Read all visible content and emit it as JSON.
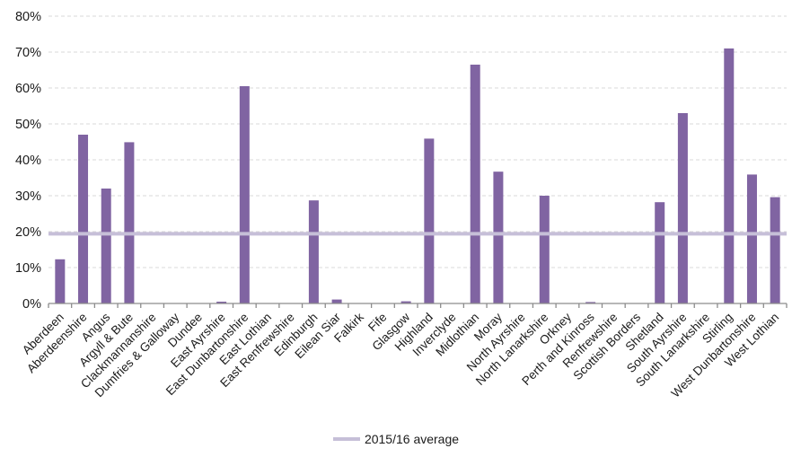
{
  "chart_data": {
    "type": "bar",
    "title": "",
    "xlabel": "",
    "ylabel": "",
    "categories": [
      "Aberdeen",
      "Aberdeenshire",
      "Angus",
      "Argyll & Bute",
      "Clackmannanshire",
      "Dumfries & Galloway",
      "Dundee",
      "East Ayrshire",
      "East Dunbartonshire",
      "East Lothian",
      "East Renfrewshire",
      "Edinburgh",
      "Eilean Siar",
      "Falkirk",
      "Fife",
      "Glasgow",
      "Highland",
      "Inverclyde",
      "Midlothian",
      "Moray",
      "North Ayrshire",
      "North Lanarkshire",
      "Orkney",
      "Perth and Kinross",
      "Renfrewshire",
      "Scottish Borders",
      "Shetland",
      "South Ayrshire",
      "South Lanarkshire",
      "Stirling",
      "West Dunbartonshire",
      "West Lothian"
    ],
    "values": [
      12.3,
      47,
      32,
      44.9,
      0,
      0,
      0,
      0.5,
      60.5,
      0,
      0,
      28.7,
      1.1,
      0,
      0,
      0.6,
      45.9,
      0,
      66.5,
      36.7,
      0,
      30,
      0,
      0.4,
      0,
      0,
      28.2,
      53,
      0,
      71,
      35.9,
      29.6
    ],
    "average_line": {
      "label": "2015/16 average",
      "value": 19.4
    },
    "y_axis": {
      "min": 0,
      "max": 80,
      "step": 10,
      "tick_labels": [
        "0%",
        "10%",
        "20%",
        "30%",
        "40%",
        "50%",
        "60%",
        "70%",
        "80%"
      ]
    },
    "grid": true,
    "legend_position": "bottom",
    "colors": {
      "bar": "#8064A2",
      "average_line": "#C6BFD8",
      "gridline": "#D9D9D9",
      "axis": "#8C8C8C",
      "text": "#1a1a1a"
    }
  },
  "legend": {
    "average_label": "2015/16 average"
  }
}
